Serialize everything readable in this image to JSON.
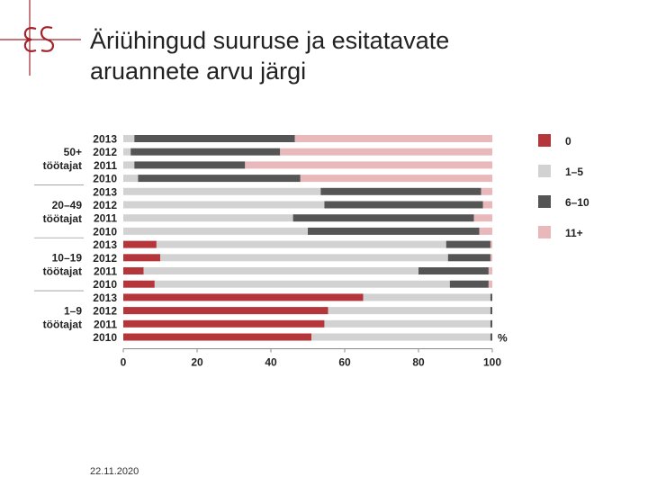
{
  "slide": {
    "title_line1": "Äriühingud suuruse ja esitatavate",
    "title_line2": "aruannete arvu järgi",
    "date": "22.11.2020"
  },
  "logo": {
    "icon": "es-logo-icon",
    "text": "ƐS",
    "color": "#a3232a"
  },
  "chart_data": {
    "type": "bar",
    "orientation": "horizontal",
    "stacked": true,
    "unit_label": "%",
    "xlim": [
      0,
      100
    ],
    "x_ticks": [
      0,
      20,
      40,
      60,
      80,
      100
    ],
    "legend_position": "right",
    "groups": [
      {
        "label_line1": "50+",
        "label_line2": "töötajat",
        "years": [
          "2013",
          "2012",
          "2011",
          "2010"
        ]
      },
      {
        "label_line1": "20–49",
        "label_line2": "töötajat",
        "years": [
          "2013",
          "2012",
          "2011",
          "2010"
        ]
      },
      {
        "label_line1": "10–19",
        "label_line2": "töötajat",
        "years": [
          "2013",
          "2012",
          "2011",
          "2010"
        ]
      },
      {
        "label_line1": "1–9",
        "label_line2": "töötajat",
        "years": [
          "2013",
          "2012",
          "2011",
          "2010"
        ]
      }
    ],
    "series": [
      {
        "name": "0",
        "color": "#b5363a",
        "values": [
          0,
          0,
          0,
          0,
          0,
          0,
          0,
          0,
          9,
          10,
          5.5,
          8.5,
          65,
          55.5,
          54.5,
          51
        ]
      },
      {
        "name": "1–5",
        "color": "#d2d2d2",
        "values": [
          3,
          2,
          3,
          4,
          53.5,
          54.5,
          46,
          50,
          78.5,
          78,
          74.5,
          80,
          34.5,
          44,
          45,
          48.5
        ]
      },
      {
        "name": "6–10",
        "color": "#555555",
        "values": [
          43.5,
          40.5,
          30,
          44,
          43.5,
          43,
          49,
          46.5,
          12,
          11.5,
          19,
          10.5,
          0.5,
          0.5,
          0.5,
          0.5
        ]
      },
      {
        "name": "11+",
        "color": "#e8b8bb",
        "values": [
          53.5,
          57.5,
          67,
          52,
          3,
          2.5,
          5,
          3.5,
          0.5,
          0.5,
          1,
          1,
          0,
          0,
          0,
          0
        ]
      }
    ]
  }
}
